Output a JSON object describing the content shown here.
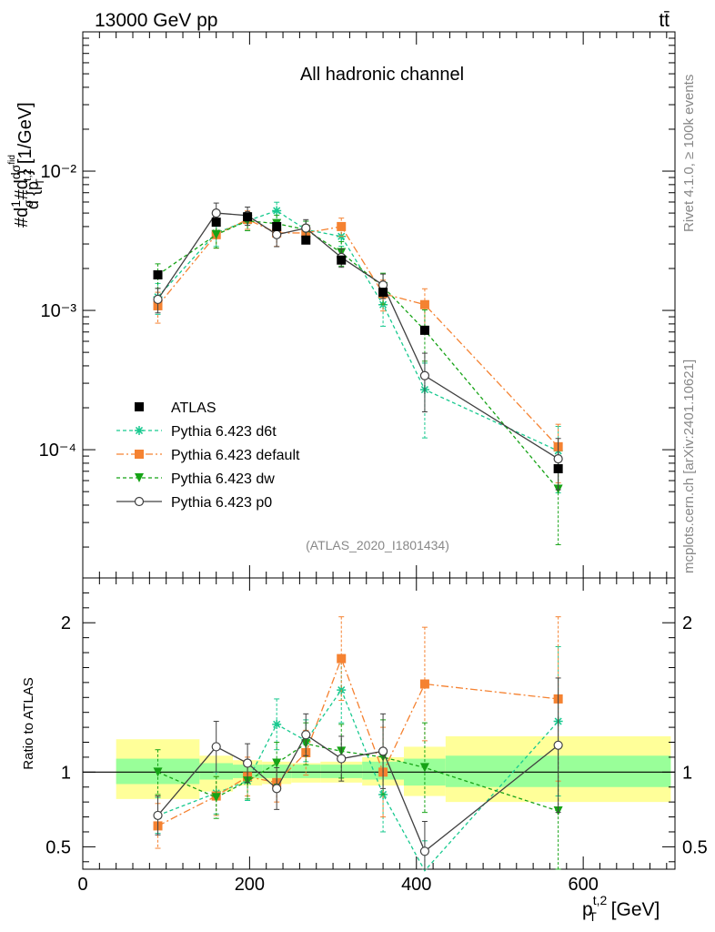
{
  "header": {
    "left": "13000 GeV pp",
    "right": "tt̄"
  },
  "side_labels": {
    "rivet": "Rivet 4.1.0, ≥ 100k events",
    "mcplots": "mcplots.cern.ch [arXiv:2401.10621]"
  },
  "colors": {
    "atlas": "#000000",
    "d6t": "#18c98f",
    "default": "#f58231",
    "dw": "#16a316",
    "p0": "#404040",
    "band_inner": "#99ff99",
    "band_outer": "#ffff99"
  },
  "chart_data": [
    {
      "type": "scatter",
      "panel": "main",
      "title": "All hadronic channel",
      "analysis_tag": "(ATLAS_2020_I1801434)",
      "ylabel": "#d1/σ#d dσ^{fid}/d{p_T^{t,2}} [1/GeV]",
      "ylabel_parts": [
        "#d",
        "1",
        "σ",
        "#d",
        "dσ",
        "fid",
        "d {p",
        "t,2",
        "T",
        "} [1/GeV]"
      ],
      "yscale": "log",
      "ylim": [
        1.2e-05,
        0.1
      ],
      "xlim": [
        0,
        710
      ],
      "ytick_labels": [
        "10⁻²",
        "10⁻³",
        "10⁻⁴"
      ],
      "ytick_values": [
        0.01,
        0.001,
        0.0001
      ],
      "legend_position": "lower-left",
      "x": [
        90,
        160,
        197.5,
        232.5,
        267.5,
        310,
        360,
        410,
        570
      ],
      "series": [
        {
          "key": "atlas",
          "name": "ATLAS",
          "marker": "square",
          "dash": "none",
          "values": [
            0.0018,
            0.0043,
            0.0047,
            0.004,
            0.0032,
            0.0023,
            0.00135,
            0.00072,
            7.3e-05
          ]
        },
        {
          "key": "d6t",
          "name": "Pythia 6.423 d6t",
          "marker": "star",
          "dash": "4,3",
          "values": [
            0.00125,
            0.0036,
            0.0044,
            0.0052,
            0.0038,
            0.0034,
            0.0011,
            0.00027,
            9.8e-05
          ],
          "err_rel": [
            0.25,
            0.2,
            0.15,
            0.15,
            0.15,
            0.15,
            0.3,
            0.55,
            0.5
          ]
        },
        {
          "key": "default",
          "name": "Pythia 6.423 default",
          "marker": "square",
          "dash": "8,3,2,3",
          "values": [
            0.00108,
            0.0035,
            0.0045,
            0.0036,
            0.0036,
            0.004,
            0.00132,
            0.0011,
            0.000105
          ],
          "err_rel": [
            0.25,
            0.2,
            0.15,
            0.2,
            0.15,
            0.15,
            0.25,
            0.3,
            0.45
          ]
        },
        {
          "key": "dw",
          "name": "Pythia 6.423 dw",
          "marker": "triangle-down",
          "dash": "4,3",
          "values": [
            0.0018,
            0.0035,
            0.0044,
            0.0042,
            0.0038,
            0.0026,
            0.00148,
            0.00072,
            5.2e-05
          ],
          "err_rel": [
            0.2,
            0.2,
            0.15,
            0.15,
            0.15,
            0.2,
            0.25,
            0.4,
            0.6
          ]
        },
        {
          "key": "p0",
          "name": "Pythia 6.423 p0",
          "marker": "circle-open",
          "dash": "none",
          "values": [
            0.0012,
            0.005,
            0.0048,
            0.0035,
            0.0039,
            0.0024,
            0.00152,
            0.00034,
            8.6e-05
          ],
          "err_rel": [
            0.2,
            0.18,
            0.15,
            0.18,
            0.15,
            0.15,
            0.2,
            0.45,
            0.4
          ]
        }
      ]
    },
    {
      "type": "scatter",
      "panel": "ratio",
      "ylabel": "Ratio to ATLAS",
      "xlabel": "p_T^{t,2} [GeV]",
      "xlabel_parts": [
        "p",
        "t,2",
        "T",
        " [GeV]"
      ],
      "ylim": [
        0.35,
        2.3
      ],
      "xlim": [
        0,
        710
      ],
      "ytick_labels": [
        "0.5",
        "1",
        "2"
      ],
      "ytick_values": [
        0.5,
        1,
        2
      ],
      "xtick_labels": [
        "0",
        "200",
        "400",
        "600"
      ],
      "xtick_values": [
        0,
        200,
        400,
        600
      ],
      "bins": [
        {
          "lo": 40,
          "hi": 140,
          "inner": [
            0.92,
            1.09
          ],
          "outer": [
            0.82,
            1.22
          ]
        },
        {
          "lo": 140,
          "hi": 180,
          "inner": [
            0.95,
            1.06
          ],
          "outer": [
            0.87,
            1.11
          ]
        },
        {
          "lo": 180,
          "hi": 215,
          "inner": [
            0.96,
            1.05
          ],
          "outer": [
            0.91,
            1.08
          ]
        },
        {
          "lo": 215,
          "hi": 250,
          "inner": [
            0.96,
            1.05
          ],
          "outer": [
            0.92,
            1.07
          ]
        },
        {
          "lo": 250,
          "hi": 285,
          "inner": [
            0.96,
            1.05
          ],
          "outer": [
            0.93,
            1.06
          ]
        },
        {
          "lo": 285,
          "hi": 335,
          "inner": [
            0.96,
            1.05
          ],
          "outer": [
            0.93,
            1.07
          ]
        },
        {
          "lo": 335,
          "hi": 385,
          "inner": [
            0.95,
            1.07
          ],
          "outer": [
            0.91,
            1.1
          ]
        },
        {
          "lo": 385,
          "hi": 435,
          "inner": [
            0.91,
            1.09
          ],
          "outer": [
            0.84,
            1.17
          ]
        },
        {
          "lo": 435,
          "hi": 705,
          "inner": [
            0.9,
            1.11
          ],
          "outer": [
            0.8,
            1.24
          ]
        }
      ],
      "x": [
        90,
        160,
        197.5,
        232.5,
        267.5,
        310,
        360,
        410,
        570
      ],
      "series": [
        {
          "key": "d6t",
          "values": [
            0.71,
            0.86,
            0.94,
            1.32,
            1.21,
            1.55,
            0.85,
            0.34,
            1.34
          ],
          "err_lo": [
            0.12,
            0.14,
            0.13,
            0.17,
            0.14,
            0.22,
            0.25,
            0.2,
            0.5
          ],
          "err_hi": [
            0.12,
            0.14,
            0.13,
            0.17,
            0.14,
            0.22,
            0.25,
            0.2,
            0.5
          ]
        },
        {
          "key": "default",
          "values": [
            0.64,
            0.84,
            0.97,
            0.93,
            1.13,
            1.76,
            1.0,
            1.59,
            1.49
          ],
          "err_lo": [
            0.15,
            0.13,
            0.13,
            0.13,
            0.15,
            0.28,
            0.3,
            0.38,
            0.55
          ],
          "err_hi": [
            0.15,
            0.13,
            0.13,
            0.13,
            0.15,
            0.28,
            0.3,
            0.38,
            0.55
          ]
        },
        {
          "key": "dw",
          "values": [
            1.0,
            0.83,
            0.94,
            1.06,
            1.19,
            1.14,
            1.1,
            1.03,
            0.74
          ],
          "err_lo": [
            0.15,
            0.14,
            0.12,
            0.14,
            0.14,
            0.18,
            0.25,
            0.3,
            0.45
          ],
          "err_hi": [
            0.15,
            0.14,
            0.12,
            0.14,
            0.14,
            0.18,
            0.25,
            0.3,
            0.45
          ]
        },
        {
          "key": "p0",
          "values": [
            0.71,
            1.17,
            1.06,
            0.89,
            1.25,
            1.09,
            1.14,
            0.47,
            1.18
          ],
          "err_lo": [
            0.13,
            0.17,
            0.13,
            0.14,
            0.14,
            0.15,
            0.25,
            0.2,
            0.45
          ],
          "err_hi": [
            0.13,
            0.17,
            0.13,
            0.14,
            0.14,
            0.15,
            0.25,
            0.2,
            0.45
          ]
        }
      ]
    }
  ]
}
